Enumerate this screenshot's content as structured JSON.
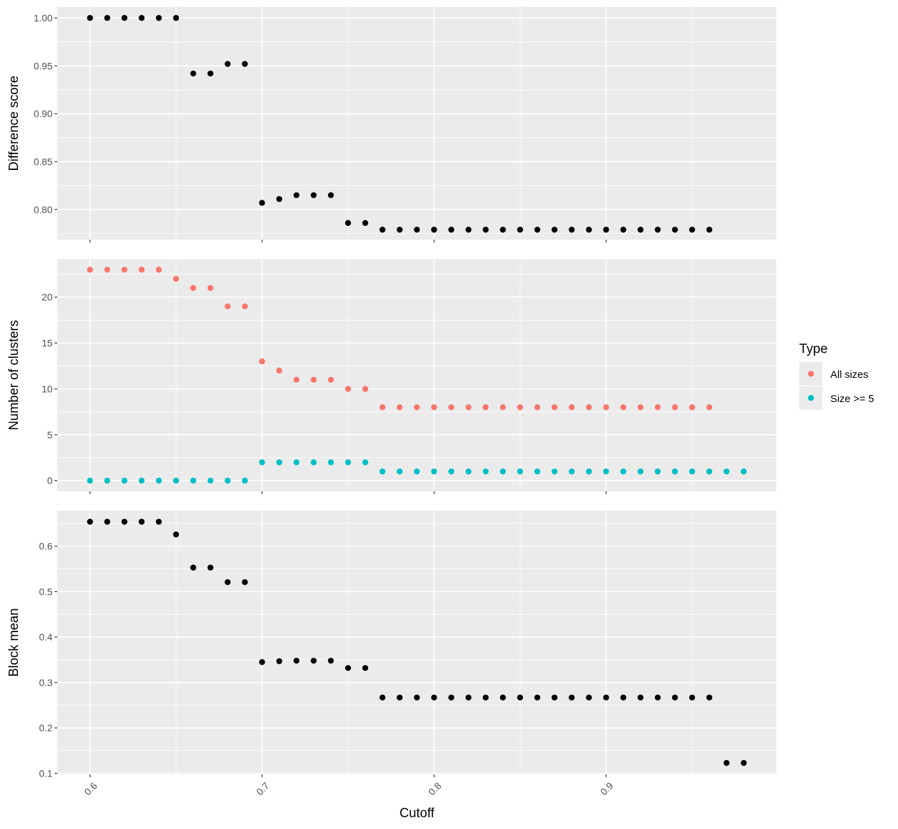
{
  "chart_data": [
    {
      "type": "scatter",
      "panel": "top",
      "ylabel": "Difference score",
      "xlim": [
        0.581,
        0.999
      ],
      "ylim": [
        0.7685,
        1.0115
      ],
      "x_ticks": [
        0.6,
        0.7,
        0.8,
        0.9
      ],
      "y_ticks": [
        0.8,
        0.85,
        0.9,
        0.95,
        1.0
      ],
      "y_tick_labels": [
        "0.80",
        "0.85",
        "0.90",
        "0.95",
        "1.00"
      ],
      "grid": true,
      "series": [
        {
          "color": "#000000",
          "points": [
            [
              0.6,
              1.0
            ],
            [
              0.61,
              1.0
            ],
            [
              0.62,
              1.0
            ],
            [
              0.63,
              1.0
            ],
            [
              0.64,
              1.0
            ],
            [
              0.65,
              1.0
            ],
            [
              0.66,
              0.942
            ],
            [
              0.67,
              0.942
            ],
            [
              0.68,
              0.952
            ],
            [
              0.69,
              0.952
            ],
            [
              0.7,
              0.807
            ],
            [
              0.71,
              0.811
            ],
            [
              0.72,
              0.815
            ],
            [
              0.73,
              0.815
            ],
            [
              0.74,
              0.815
            ],
            [
              0.75,
              0.786
            ],
            [
              0.76,
              0.786
            ],
            [
              0.77,
              0.779
            ],
            [
              0.78,
              0.779
            ],
            [
              0.79,
              0.779
            ],
            [
              0.8,
              0.779
            ],
            [
              0.81,
              0.779
            ],
            [
              0.82,
              0.779
            ],
            [
              0.83,
              0.779
            ],
            [
              0.84,
              0.779
            ],
            [
              0.85,
              0.779
            ],
            [
              0.86,
              0.779
            ],
            [
              0.87,
              0.779
            ],
            [
              0.88,
              0.779
            ],
            [
              0.89,
              0.779
            ],
            [
              0.9,
              0.779
            ],
            [
              0.91,
              0.779
            ],
            [
              0.92,
              0.779
            ],
            [
              0.93,
              0.779
            ],
            [
              0.94,
              0.779
            ],
            [
              0.95,
              0.779
            ],
            [
              0.96,
              0.779
            ]
          ]
        }
      ]
    },
    {
      "type": "scatter",
      "panel": "middle",
      "ylabel": "Number of clusters",
      "xlim": [
        0.581,
        0.999
      ],
      "ylim": [
        -1.15,
        24.15
      ],
      "x_ticks": [
        0.6,
        0.7,
        0.8,
        0.9
      ],
      "y_ticks": [
        0,
        5,
        10,
        15,
        20
      ],
      "y_tick_labels": [
        "0",
        "5",
        "10",
        "15",
        "20"
      ],
      "grid": true,
      "series": [
        {
          "name": "All sizes",
          "color": "#F8766D",
          "points": [
            [
              0.6,
              23
            ],
            [
              0.61,
              23
            ],
            [
              0.62,
              23
            ],
            [
              0.63,
              23
            ],
            [
              0.64,
              23
            ],
            [
              0.65,
              22
            ],
            [
              0.66,
              21
            ],
            [
              0.67,
              21
            ],
            [
              0.68,
              19
            ],
            [
              0.69,
              19
            ],
            [
              0.7,
              13
            ],
            [
              0.71,
              12
            ],
            [
              0.72,
              11
            ],
            [
              0.73,
              11
            ],
            [
              0.74,
              11
            ],
            [
              0.75,
              10
            ],
            [
              0.76,
              10
            ],
            [
              0.77,
              8
            ],
            [
              0.78,
              8
            ],
            [
              0.79,
              8
            ],
            [
              0.8,
              8
            ],
            [
              0.81,
              8
            ],
            [
              0.82,
              8
            ],
            [
              0.83,
              8
            ],
            [
              0.84,
              8
            ],
            [
              0.85,
              8
            ],
            [
              0.86,
              8
            ],
            [
              0.87,
              8
            ],
            [
              0.88,
              8
            ],
            [
              0.89,
              8
            ],
            [
              0.9,
              8
            ],
            [
              0.91,
              8
            ],
            [
              0.92,
              8
            ],
            [
              0.93,
              8
            ],
            [
              0.94,
              8
            ],
            [
              0.95,
              8
            ],
            [
              0.96,
              8
            ]
          ]
        },
        {
          "name": "Size >= 5",
          "color": "#00BFC4",
          "points": [
            [
              0.6,
              0
            ],
            [
              0.61,
              0
            ],
            [
              0.62,
              0
            ],
            [
              0.63,
              0
            ],
            [
              0.64,
              0
            ],
            [
              0.65,
              0
            ],
            [
              0.66,
              0
            ],
            [
              0.67,
              0
            ],
            [
              0.68,
              0
            ],
            [
              0.69,
              0
            ],
            [
              0.7,
              2
            ],
            [
              0.71,
              2
            ],
            [
              0.72,
              2
            ],
            [
              0.73,
              2
            ],
            [
              0.74,
              2
            ],
            [
              0.75,
              2
            ],
            [
              0.76,
              2
            ],
            [
              0.77,
              1
            ],
            [
              0.78,
              1
            ],
            [
              0.79,
              1
            ],
            [
              0.8,
              1
            ],
            [
              0.81,
              1
            ],
            [
              0.82,
              1
            ],
            [
              0.83,
              1
            ],
            [
              0.84,
              1
            ],
            [
              0.85,
              1
            ],
            [
              0.86,
              1
            ],
            [
              0.87,
              1
            ],
            [
              0.88,
              1
            ],
            [
              0.89,
              1
            ],
            [
              0.9,
              1
            ],
            [
              0.91,
              1
            ],
            [
              0.92,
              1
            ],
            [
              0.93,
              1
            ],
            [
              0.94,
              1
            ],
            [
              0.95,
              1
            ],
            [
              0.96,
              1
            ],
            [
              0.97,
              1
            ],
            [
              0.98,
              1
            ]
          ]
        }
      ]
    },
    {
      "type": "scatter",
      "panel": "bottom",
      "ylabel": "Block mean",
      "xlabel": "Cutoff",
      "xlim": [
        0.581,
        0.999
      ],
      "ylim": [
        0.0976,
        0.6786
      ],
      "x_ticks": [
        0.6,
        0.7,
        0.8,
        0.9
      ],
      "x_tick_labels": [
        "0.6",
        "0.7",
        "0.8",
        "0.9"
      ],
      "y_ticks": [
        0.1,
        0.2,
        0.3,
        0.4,
        0.5,
        0.6
      ],
      "y_tick_labels": [
        "0.1",
        "0.2",
        "0.3",
        "0.4",
        "0.5",
        "0.6"
      ],
      "grid": true,
      "series": [
        {
          "color": "#000000",
          "points": [
            [
              0.6,
              0.654
            ],
            [
              0.61,
              0.654
            ],
            [
              0.62,
              0.654
            ],
            [
              0.63,
              0.654
            ],
            [
              0.64,
              0.654
            ],
            [
              0.65,
              0.626
            ],
            [
              0.66,
              0.553
            ],
            [
              0.67,
              0.553
            ],
            [
              0.68,
              0.521
            ],
            [
              0.69,
              0.521
            ],
            [
              0.7,
              0.345
            ],
            [
              0.71,
              0.347
            ],
            [
              0.72,
              0.348
            ],
            [
              0.73,
              0.348
            ],
            [
              0.74,
              0.348
            ],
            [
              0.75,
              0.332
            ],
            [
              0.76,
              0.332
            ],
            [
              0.77,
              0.267
            ],
            [
              0.78,
              0.267
            ],
            [
              0.79,
              0.267
            ],
            [
              0.8,
              0.267
            ],
            [
              0.81,
              0.267
            ],
            [
              0.82,
              0.267
            ],
            [
              0.83,
              0.267
            ],
            [
              0.84,
              0.267
            ],
            [
              0.85,
              0.267
            ],
            [
              0.86,
              0.267
            ],
            [
              0.87,
              0.267
            ],
            [
              0.88,
              0.267
            ],
            [
              0.89,
              0.267
            ],
            [
              0.9,
              0.267
            ],
            [
              0.91,
              0.267
            ],
            [
              0.92,
              0.267
            ],
            [
              0.93,
              0.267
            ],
            [
              0.94,
              0.267
            ],
            [
              0.95,
              0.267
            ],
            [
              0.96,
              0.267
            ],
            [
              0.97,
              0.123
            ],
            [
              0.98,
              0.123
            ]
          ]
        }
      ]
    }
  ],
  "legend": {
    "title": "Type",
    "placement": "right",
    "items": [
      {
        "label": "All sizes",
        "color": "#F8766D"
      },
      {
        "label": "Size >= 5",
        "color": "#00BFC4"
      }
    ]
  }
}
